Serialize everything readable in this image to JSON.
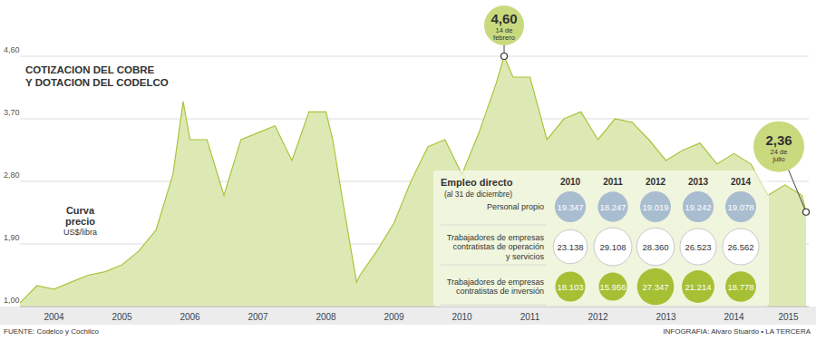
{
  "chart_data": {
    "type": "area",
    "title": [
      "COTIZACION DEL COBRE",
      "Y DOTACION DEL CODELCO"
    ],
    "y_label": "US$/libra",
    "x": [
      2004.0,
      2004.25,
      2004.5,
      2004.75,
      2005.0,
      2005.25,
      2005.5,
      2005.75,
      2006.0,
      2006.25,
      2006.4,
      2006.5,
      2006.75,
      2007.0,
      2007.25,
      2007.5,
      2007.75,
      2008.0,
      2008.25,
      2008.5,
      2008.6,
      2008.75,
      2008.95,
      2009.0,
      2009.25,
      2009.5,
      2009.75,
      2010.0,
      2010.25,
      2010.5,
      2010.75,
      2011.0,
      2011.12,
      2011.25,
      2011.5,
      2011.75,
      2012.0,
      2012.25,
      2012.5,
      2012.75,
      2013.0,
      2013.25,
      2013.5,
      2013.75,
      2014.0,
      2014.25,
      2014.5,
      2014.75,
      2015.0,
      2015.25,
      2015.5,
      2015.56
    ],
    "series": [
      {
        "name": "Curva precio",
        "color": "#a9c43a",
        "values": [
          1.05,
          1.3,
          1.25,
          1.35,
          1.45,
          1.5,
          1.6,
          1.8,
          2.1,
          2.9,
          3.95,
          3.4,
          3.4,
          2.6,
          3.4,
          3.5,
          3.6,
          3.1,
          3.8,
          3.8,
          3.4,
          2.5,
          1.35,
          1.45,
          1.8,
          2.2,
          2.8,
          3.3,
          3.4,
          2.9,
          3.5,
          4.2,
          4.6,
          4.3,
          4.3,
          3.4,
          3.7,
          3.8,
          3.4,
          3.7,
          3.65,
          3.4,
          3.1,
          3.25,
          3.35,
          3.05,
          3.2,
          3.05,
          2.6,
          2.75,
          2.6,
          2.36
        ]
      }
    ],
    "xlim": [
      2004,
      2015.6
    ],
    "xticks": [
      {
        "value": 2004.5,
        "label": "2004"
      },
      {
        "value": 2005.5,
        "label": "2005"
      },
      {
        "value": 2006.5,
        "label": "2006"
      },
      {
        "value": 2007.5,
        "label": "2007"
      },
      {
        "value": 2008.5,
        "label": "2008"
      },
      {
        "value": 2009.5,
        "label": "2009"
      },
      {
        "value": 2010.5,
        "label": "2010"
      },
      {
        "value": 2011.5,
        "label": "2011"
      },
      {
        "value": 2012.5,
        "label": "2012"
      },
      {
        "value": 2013.5,
        "label": "2013"
      },
      {
        "value": 2014.5,
        "label": "2014"
      },
      {
        "value": 2015.3,
        "label": "2015"
      }
    ],
    "ylim": [
      1.0,
      4.6
    ],
    "yticks": [
      {
        "value": 1.0,
        "label": "1,00"
      },
      {
        "value": 1.9,
        "label": "1,90"
      },
      {
        "value": 2.8,
        "label": "2,80"
      },
      {
        "value": 3.7,
        "label": "3,70"
      },
      {
        "value": 4.6,
        "label": "4,60"
      }
    ],
    "grid": true,
    "annotations": [
      {
        "x": 2011.12,
        "y": 4.6,
        "label": "4,60",
        "text": "14 de febrero"
      },
      {
        "x": 2015.56,
        "y": 2.36,
        "label": "2,36",
        "text": "24 de julio"
      }
    ],
    "table": {
      "title": "Empleo directo",
      "subtitle": "(al 31 de diciembre)",
      "columns": [
        2010,
        2011,
        2012,
        2013,
        2014
      ],
      "rows": [
        {
          "label": [
            "Personal propio"
          ],
          "color": "#a9bdd1",
          "values": [
            19347,
            18247,
            19019,
            19242,
            19078
          ],
          "value_labels": [
            "19.347",
            "18.247",
            "19.019",
            "19.242",
            "19.078"
          ]
        },
        {
          "label": [
            "Trabajadores de empresas",
            "contratistas de operación",
            "y servicios"
          ],
          "color": "#ffffff",
          "values": [
            23138,
            29108,
            28360,
            26523,
            26562
          ],
          "value_labels": [
            "23.138",
            "29.108",
            "28.360",
            "26.523",
            "26.562"
          ]
        },
        {
          "label": [
            "Trabajadores de empresas",
            "contratistas de inversión"
          ],
          "color": "#a5c035",
          "values": [
            18103,
            15956,
            27347,
            21214,
            18778
          ],
          "value_labels": [
            "18.103",
            "15.956",
            "27.347",
            "21.214",
            "18.778"
          ]
        }
      ]
    },
    "source": "FUENTE: Codelco y Cochilco",
    "credit": "INFOGRAFIA: Alvaro Stuardo • LA TERCERA"
  }
}
